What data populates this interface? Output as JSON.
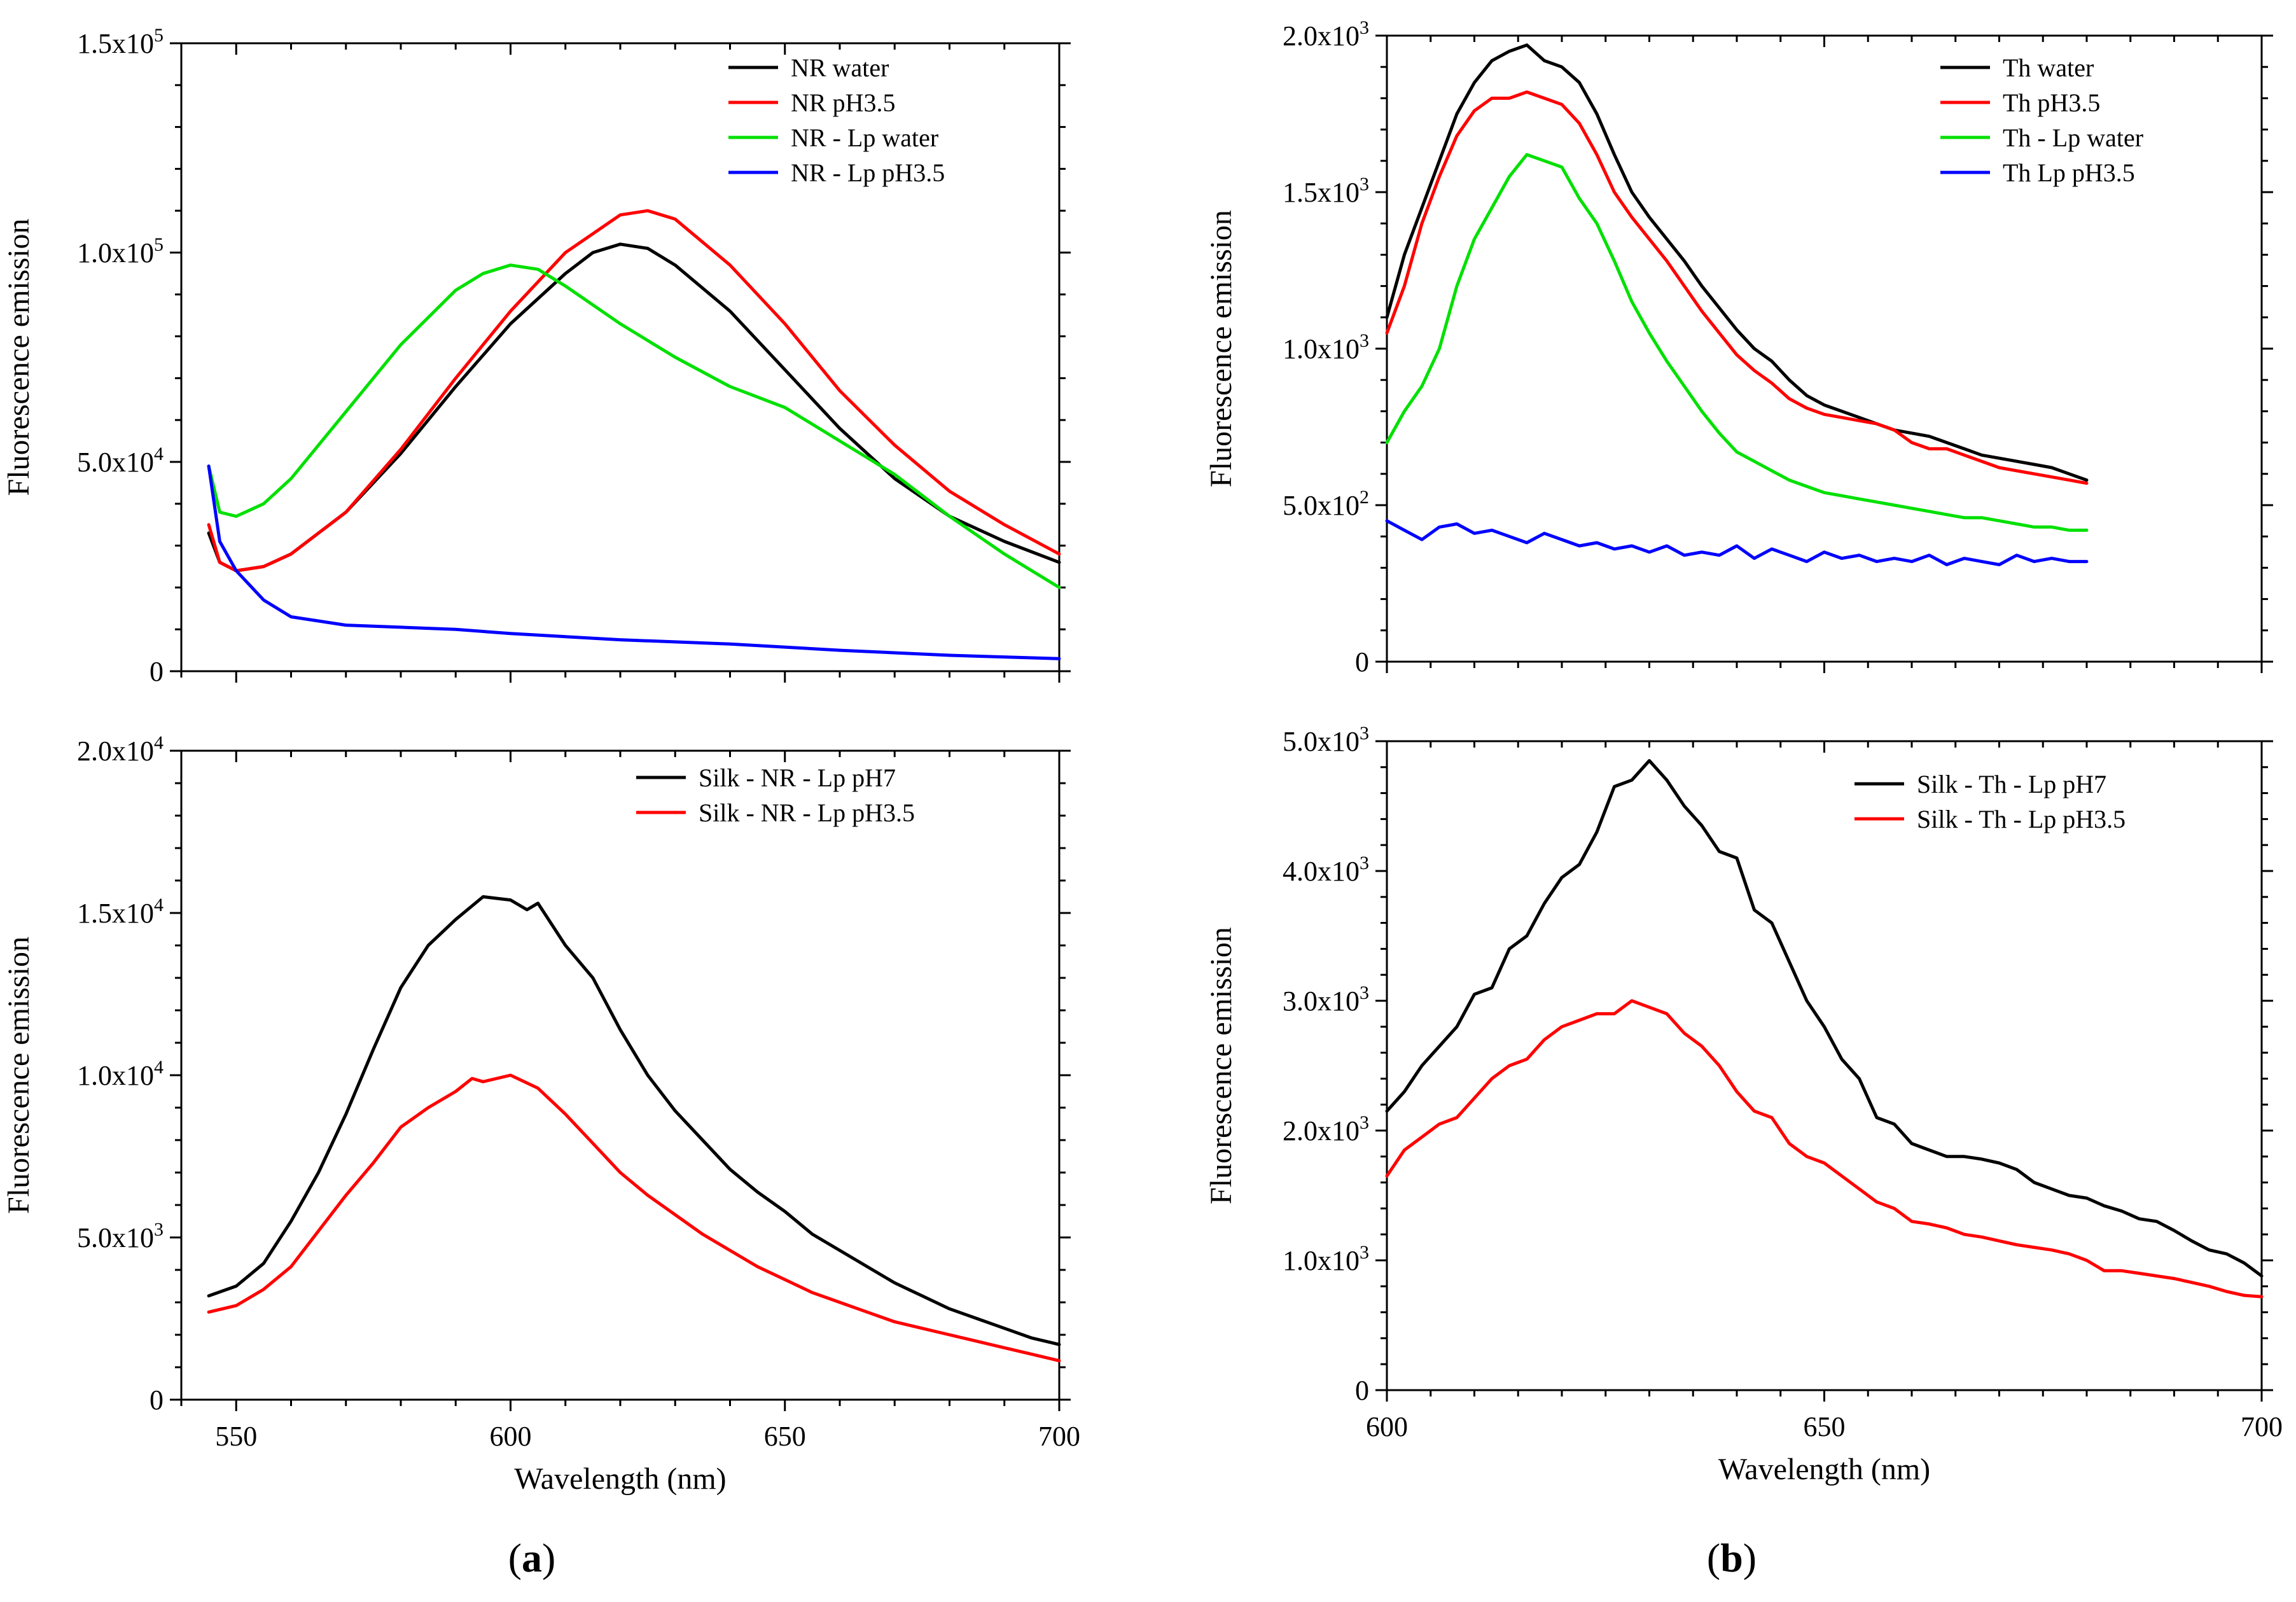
{
  "figure": {
    "panel_labels": [
      {
        "letter": "a",
        "open": "(",
        "close": ")"
      },
      {
        "letter": "b",
        "open": "(",
        "close": ")"
      }
    ]
  },
  "chart_data": [
    {
      "id": "a-top",
      "type": "line",
      "xlabel": "",
      "ylabel": "Fluorescence emission",
      "xlim": [
        540,
        700
      ],
      "ylim": [
        0,
        150000
      ],
      "xticks": [
        550,
        600,
        650,
        700
      ],
      "xtick_labels_shown": false,
      "yticks": [
        {
          "value": 0,
          "mant": "0",
          "exp": ""
        },
        {
          "value": 50000,
          "mant": "5.0x10",
          "exp": "4"
        },
        {
          "value": 100000,
          "mant": "1.0x10",
          "exp": "5"
        },
        {
          "value": 150000,
          "mant": "1.5x10",
          "exp": "5"
        }
      ],
      "legend_position": "top-right",
      "series": [
        {
          "name": "NR water",
          "color": "#000000",
          "x": [
            545,
            547,
            550,
            555,
            560,
            570,
            580,
            590,
            600,
            610,
            615,
            620,
            625,
            630,
            640,
            650,
            660,
            670,
            680,
            690,
            700
          ],
          "y": [
            33000,
            26000,
            24000,
            25000,
            28000,
            38000,
            52000,
            68000,
            83000,
            95000,
            100000,
            102000,
            101000,
            97000,
            86000,
            72000,
            58000,
            46000,
            37000,
            31000,
            26000
          ]
        },
        {
          "name": "NR pH3.5",
          "color": "#ff0000",
          "x": [
            545,
            547,
            550,
            555,
            560,
            570,
            580,
            590,
            600,
            610,
            620,
            625,
            630,
            640,
            650,
            660,
            670,
            680,
            690,
            700
          ],
          "y": [
            35000,
            26000,
            24000,
            25000,
            28000,
            38000,
            53000,
            70000,
            86000,
            100000,
            109000,
            110000,
            108000,
            97000,
            83000,
            67000,
            54000,
            43000,
            35000,
            28000
          ]
        },
        {
          "name": "NR - Lp water",
          "color": "#00e000",
          "x": [
            545,
            547,
            550,
            555,
            560,
            570,
            580,
            590,
            595,
            600,
            605,
            610,
            620,
            630,
            640,
            650,
            660,
            670,
            680,
            690,
            700
          ],
          "y": [
            49000,
            38000,
            37000,
            40000,
            46000,
            62000,
            78000,
            91000,
            95000,
            97000,
            96000,
            92000,
            83000,
            75000,
            68000,
            63000,
            55000,
            47000,
            37000,
            28000,
            20000
          ]
        },
        {
          "name": "NR - Lp pH3.5",
          "color": "#0000ff",
          "x": [
            545,
            547,
            550,
            555,
            560,
            570,
            580,
            590,
            600,
            620,
            640,
            660,
            680,
            700
          ],
          "y": [
            49000,
            31000,
            24000,
            17000,
            13000,
            11000,
            10500,
            10000,
            9000,
            7500,
            6500,
            5000,
            3800,
            3000
          ]
        }
      ]
    },
    {
      "id": "a-bottom",
      "type": "line",
      "xlabel": "Wavelength (nm)",
      "ylabel": "Fluorescence emission",
      "xlim": [
        540,
        700
      ],
      "ylim": [
        0,
        20000
      ],
      "xticks": [
        550,
        600,
        650,
        700
      ],
      "xtick_labels_shown": true,
      "yticks": [
        {
          "value": 0,
          "mant": "0",
          "exp": ""
        },
        {
          "value": 5000,
          "mant": "5.0x10",
          "exp": "3"
        },
        {
          "value": 10000,
          "mant": "1.0x10",
          "exp": "4"
        },
        {
          "value": 15000,
          "mant": "1.5x10",
          "exp": "4"
        },
        {
          "value": 20000,
          "mant": "2.0x10",
          "exp": "4"
        }
      ],
      "legend_position": "top-right",
      "series": [
        {
          "name": "Silk - NR - Lp pH7",
          "color": "#000000",
          "x": [
            545,
            550,
            555,
            560,
            565,
            570,
            575,
            580,
            585,
            590,
            595,
            600,
            603,
            605,
            610,
            615,
            620,
            625,
            630,
            635,
            640,
            645,
            650,
            655,
            660,
            665,
            670,
            675,
            680,
            685,
            690,
            695,
            700
          ],
          "y": [
            3200,
            3500,
            4200,
            5500,
            7000,
            8800,
            10800,
            12700,
            14000,
            14800,
            15500,
            15400,
            15100,
            15300,
            14000,
            13000,
            11400,
            10000,
            8900,
            8000,
            7100,
            6400,
            5800,
            5100,
            4600,
            4100,
            3600,
            3200,
            2800,
            2500,
            2200,
            1900,
            1700
          ]
        },
        {
          "name": "Silk - NR - Lp pH3.5",
          "color": "#ff0000",
          "x": [
            545,
            550,
            555,
            560,
            565,
            570,
            575,
            580,
            585,
            590,
            593,
            595,
            600,
            605,
            610,
            615,
            620,
            625,
            630,
            635,
            640,
            645,
            650,
            655,
            660,
            665,
            670,
            675,
            680,
            685,
            690,
            695,
            700
          ],
          "y": [
            2700,
            2900,
            3400,
            4100,
            5200,
            6300,
            7300,
            8400,
            9000,
            9500,
            9900,
            9800,
            10000,
            9600,
            8800,
            7900,
            7000,
            6300,
            5700,
            5100,
            4600,
            4100,
            3700,
            3300,
            3000,
            2700,
            2400,
            2200,
            2000,
            1800,
            1600,
            1400,
            1200
          ]
        }
      ]
    },
    {
      "id": "b-top",
      "type": "line",
      "xlabel": "",
      "ylabel": "Fluorescence emission",
      "xlim": [
        600,
        700
      ],
      "ylim": [
        0,
        2000
      ],
      "xticks": [
        600,
        650,
        700
      ],
      "xtick_labels_shown": false,
      "yticks": [
        {
          "value": 0,
          "mant": "0",
          "exp": ""
        },
        {
          "value": 500,
          "mant": "5.0x10",
          "exp": "2"
        },
        {
          "value": 1000,
          "mant": "1.0x10",
          "exp": "3"
        },
        {
          "value": 1500,
          "mant": "1.5x10",
          "exp": "3"
        },
        {
          "value": 2000,
          "mant": "2.0x10",
          "exp": "3"
        }
      ],
      "legend_position": "top-right",
      "series": [
        {
          "name": "Th water",
          "color": "#000000",
          "x": [
            600,
            602,
            604,
            606,
            608,
            610,
            612,
            614,
            616,
            618,
            620,
            622,
            624,
            626,
            628,
            630,
            632,
            634,
            636,
            638,
            640,
            642,
            644,
            646,
            648,
            650,
            652,
            654,
            656,
            658,
            660,
            662,
            664,
            666,
            668,
            670,
            672,
            674,
            676,
            678,
            680
          ],
          "y": [
            1100,
            1300,
            1450,
            1600,
            1750,
            1850,
            1920,
            1950,
            1970,
            1920,
            1900,
            1850,
            1750,
            1620,
            1500,
            1420,
            1350,
            1280,
            1200,
            1130,
            1060,
            1000,
            960,
            900,
            850,
            820,
            800,
            780,
            760,
            740,
            730,
            720,
            700,
            680,
            660,
            650,
            640,
            630,
            620,
            600,
            580
          ]
        },
        {
          "name": "Th pH3.5",
          "color": "#ff0000",
          "x": [
            600,
            602,
            604,
            606,
            608,
            610,
            612,
            614,
            616,
            618,
            620,
            622,
            624,
            626,
            628,
            630,
            632,
            634,
            636,
            638,
            640,
            642,
            644,
            646,
            648,
            650,
            652,
            654,
            656,
            658,
            660,
            662,
            664,
            666,
            668,
            670,
            672,
            674,
            676,
            678,
            680
          ],
          "y": [
            1050,
            1200,
            1400,
            1550,
            1680,
            1760,
            1800,
            1800,
            1820,
            1800,
            1780,
            1720,
            1620,
            1500,
            1420,
            1350,
            1280,
            1200,
            1120,
            1050,
            980,
            930,
            890,
            840,
            810,
            790,
            780,
            770,
            760,
            740,
            700,
            680,
            680,
            660,
            640,
            620,
            610,
            600,
            590,
            580,
            570
          ]
        },
        {
          "name": "Th - Lp water",
          "color": "#00e000",
          "x": [
            600,
            602,
            604,
            606,
            608,
            610,
            612,
            614,
            616,
            618,
            620,
            622,
            624,
            626,
            628,
            630,
            632,
            634,
            636,
            638,
            640,
            642,
            644,
            646,
            648,
            650,
            652,
            654,
            656,
            658,
            660,
            662,
            664,
            666,
            668,
            670,
            672,
            674,
            676,
            678,
            680
          ],
          "y": [
            700,
            800,
            880,
            1000,
            1200,
            1350,
            1450,
            1550,
            1620,
            1600,
            1580,
            1480,
            1400,
            1280,
            1150,
            1050,
            960,
            880,
            800,
            730,
            670,
            640,
            610,
            580,
            560,
            540,
            530,
            520,
            510,
            500,
            490,
            480,
            470,
            460,
            460,
            450,
            440,
            430,
            430,
            420,
            420
          ]
        },
        {
          "name": "Th Lp pH3.5",
          "color": "#0000ff",
          "x": [
            600,
            602,
            604,
            606,
            608,
            610,
            612,
            614,
            616,
            618,
            620,
            622,
            624,
            626,
            628,
            630,
            632,
            634,
            636,
            638,
            640,
            642,
            644,
            646,
            648,
            650,
            652,
            654,
            656,
            658,
            660,
            662,
            664,
            666,
            668,
            670,
            672,
            674,
            676,
            678,
            680
          ],
          "y": [
            450,
            420,
            390,
            430,
            440,
            410,
            420,
            400,
            380,
            410,
            390,
            370,
            380,
            360,
            370,
            350,
            370,
            340,
            350,
            340,
            370,
            330,
            360,
            340,
            320,
            350,
            330,
            340,
            320,
            330,
            320,
            340,
            310,
            330,
            320,
            310,
            340,
            320,
            330,
            320,
            320
          ]
        }
      ]
    },
    {
      "id": "b-bottom",
      "type": "line",
      "xlabel": "Wavelength (nm)",
      "ylabel": "Fluorescence emission",
      "xlim": [
        600,
        700
      ],
      "ylim": [
        0,
        5000
      ],
      "xticks": [
        600,
        650,
        700
      ],
      "xtick_labels_shown": true,
      "yticks": [
        {
          "value": 0,
          "mant": "0",
          "exp": ""
        },
        {
          "value": 1000,
          "mant": "1.0x10",
          "exp": "3"
        },
        {
          "value": 2000,
          "mant": "2.0x10",
          "exp": "3"
        },
        {
          "value": 3000,
          "mant": "3.0x10",
          "exp": "3"
        },
        {
          "value": 4000,
          "mant": "4.0x10",
          "exp": "3"
        },
        {
          "value": 5000,
          "mant": "5.0x10",
          "exp": "3"
        }
      ],
      "legend_position": "top-right",
      "series": [
        {
          "name": "Silk - Th - Lp pH7",
          "color": "#000000",
          "x": [
            600,
            602,
            604,
            606,
            608,
            610,
            612,
            614,
            616,
            618,
            620,
            622,
            624,
            626,
            628,
            630,
            632,
            634,
            636,
            638,
            640,
            642,
            644,
            646,
            648,
            650,
            652,
            654,
            656,
            658,
            660,
            662,
            664,
            666,
            668,
            670,
            672,
            674,
            676,
            678,
            680,
            682,
            684,
            686,
            688,
            690,
            692,
            694,
            696,
            698,
            700
          ],
          "y": [
            2150,
            2300,
            2500,
            2650,
            2800,
            3050,
            3100,
            3400,
            3500,
            3750,
            3950,
            4050,
            4300,
            4650,
            4700,
            4850,
            4700,
            4500,
            4350,
            4150,
            4100,
            3700,
            3600,
            3300,
            3000,
            2800,
            2550,
            2400,
            2100,
            2050,
            1900,
            1850,
            1800,
            1800,
            1780,
            1750,
            1700,
            1600,
            1550,
            1500,
            1480,
            1420,
            1380,
            1320,
            1300,
            1230,
            1150,
            1080,
            1050,
            980,
            880
          ]
        },
        {
          "name": "Silk - Th - Lp pH3.5",
          "color": "#ff0000",
          "x": [
            600,
            602,
            604,
            606,
            608,
            610,
            612,
            614,
            616,
            618,
            620,
            622,
            624,
            626,
            628,
            630,
            632,
            634,
            636,
            638,
            640,
            642,
            644,
            646,
            648,
            650,
            652,
            654,
            656,
            658,
            660,
            662,
            664,
            666,
            668,
            670,
            672,
            674,
            676,
            678,
            680,
            682,
            684,
            686,
            688,
            690,
            692,
            694,
            696,
            698,
            700
          ],
          "y": [
            1650,
            1850,
            1950,
            2050,
            2100,
            2250,
            2400,
            2500,
            2550,
            2700,
            2800,
            2850,
            2900,
            2900,
            3000,
            2950,
            2900,
            2750,
            2650,
            2500,
            2300,
            2150,
            2100,
            1900,
            1800,
            1750,
            1650,
            1550,
            1450,
            1400,
            1300,
            1280,
            1250,
            1200,
            1180,
            1150,
            1120,
            1100,
            1080,
            1050,
            1000,
            920,
            920,
            900,
            880,
            860,
            830,
            800,
            760,
            730,
            720
          ]
        }
      ]
    }
  ]
}
